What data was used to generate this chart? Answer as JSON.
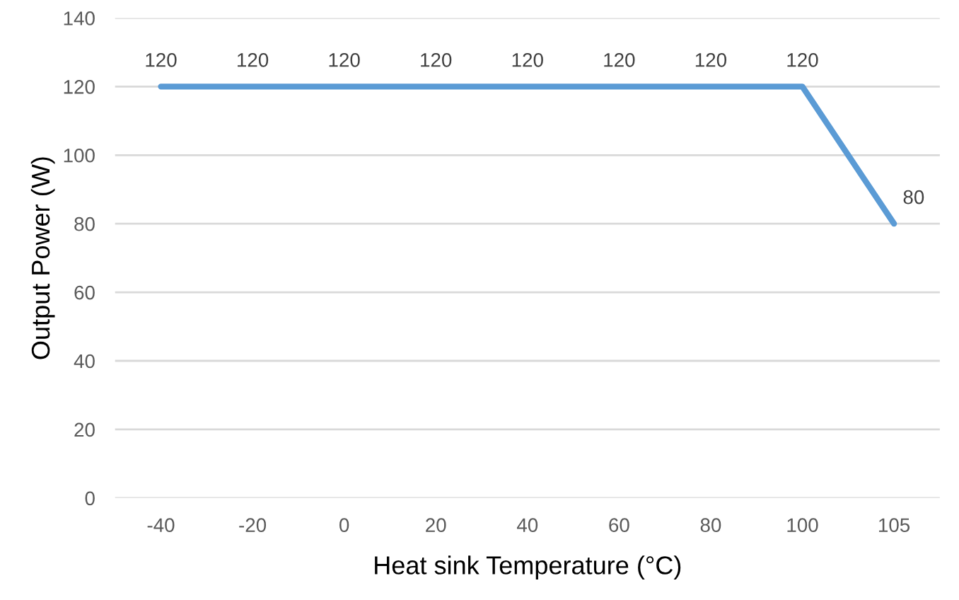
{
  "chart_data": {
    "type": "line",
    "xlabel": "Heat sink Temperature (°C)",
    "ylabel": "Output Power (W)",
    "categories": [
      "-40",
      "-20",
      "0",
      "20",
      "40",
      "60",
      "80",
      "100",
      "105"
    ],
    "series": [
      {
        "color": "#5b9bd5",
        "values": [
          120,
          120,
          120,
          120,
          120,
          120,
          120,
          120,
          80
        ]
      }
    ],
    "ylim": [
      0,
      140
    ],
    "yticks": [
      0,
      20,
      40,
      60,
      80,
      100,
      120,
      140
    ],
    "grid": "y",
    "data_labels": true,
    "marker": "none",
    "line_style": "solid"
  }
}
